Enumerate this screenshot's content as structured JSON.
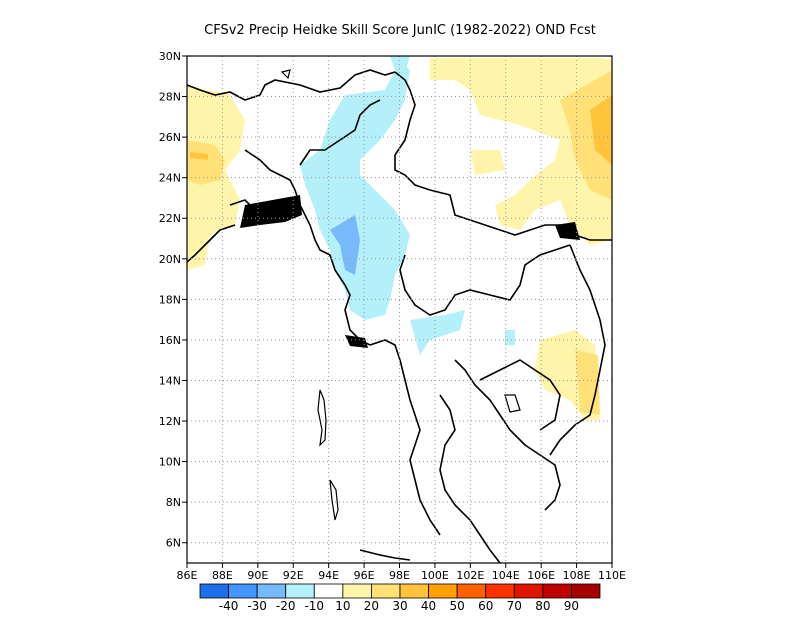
{
  "title": "CFSv2 Precip Heidke Skill Score JunIC (1982-2022) OND Fcst",
  "map": {
    "lon_range": [
      86,
      110
    ],
    "lat_range": [
      5,
      30
    ],
    "x_ticks": [
      "86E",
      "88E",
      "90E",
      "92E",
      "94E",
      "96E",
      "98E",
      "100E",
      "102E",
      "104E",
      "106E",
      "108E",
      "110E"
    ],
    "y_ticks": [
      "6N",
      "8N",
      "10N",
      "12N",
      "14N",
      "16N",
      "18N",
      "20N",
      "22N",
      "24N",
      "26N",
      "28N",
      "30N"
    ],
    "grid": "dotted"
  },
  "colorbar": {
    "colors": [
      "#1e6eeb",
      "#4196ff",
      "#78b9fa",
      "#b4f0fa",
      "#ffffff",
      "#fff5aa",
      "#ffe178",
      "#ffc33c",
      "#ffa000",
      "#ff6000",
      "#ff3200",
      "#e11400",
      "#c00000",
      "#a50000"
    ],
    "labels": [
      "-40",
      "-30",
      "-20",
      "-10",
      "10",
      "20",
      "30",
      "40",
      "50",
      "60",
      "70",
      "80",
      "90"
    ]
  }
}
